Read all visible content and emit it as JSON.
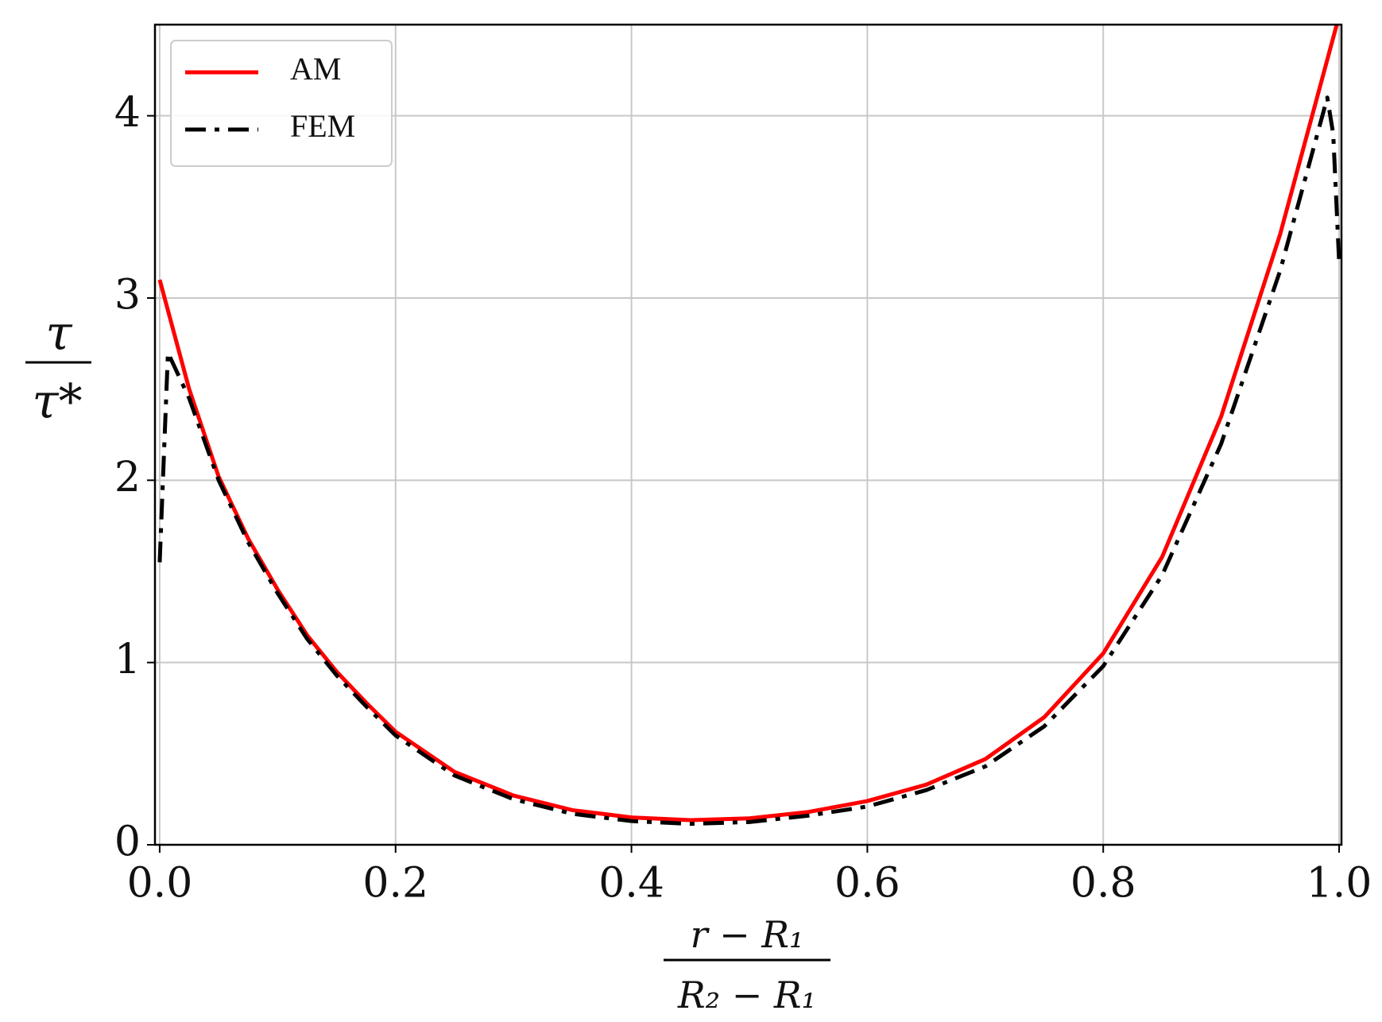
{
  "chart_data": {
    "type": "line",
    "xlabel": {
      "numerator": "r − R₁",
      "denominator": "R₂ − R₁"
    },
    "ylabel": {
      "numerator": "τ",
      "denominator": "τ*"
    },
    "xlim": [
      -0.004,
      1.002
    ],
    "ylim": [
      0,
      4.5
    ],
    "xticks": [
      {
        "value": 0,
        "label": "0.0"
      },
      0.2,
      0.4,
      0.6,
      0.8,
      {
        "value": 1,
        "label": "1.0"
      }
    ],
    "yticks": [
      0,
      1,
      2,
      3,
      4
    ],
    "grid": true,
    "legend": "upper left",
    "series": [
      {
        "name": "AM",
        "color": "#ff0000",
        "style": "solid",
        "x": [
          0,
          0.025,
          0.05,
          0.075,
          0.1,
          0.125,
          0.15,
          0.175,
          0.2,
          0.25,
          0.3,
          0.35,
          0.4,
          0.45,
          0.5,
          0.55,
          0.6,
          0.65,
          0.7,
          0.75,
          0.8,
          0.85,
          0.9,
          0.95,
          0.998
        ],
        "values": [
          3.1,
          2.5,
          2.02,
          1.68,
          1.4,
          1.15,
          0.95,
          0.78,
          0.62,
          0.4,
          0.27,
          0.19,
          0.15,
          0.135,
          0.145,
          0.18,
          0.24,
          0.33,
          0.47,
          0.7,
          1.05,
          1.58,
          2.35,
          3.35,
          4.5
        ]
      },
      {
        "name": "FEM",
        "color": "#000000",
        "style": "dashdot",
        "x": [
          0,
          0.007,
          0.025,
          0.05,
          0.075,
          0.1,
          0.125,
          0.15,
          0.175,
          0.2,
          0.25,
          0.3,
          0.35,
          0.4,
          0.45,
          0.5,
          0.55,
          0.6,
          0.65,
          0.7,
          0.75,
          0.8,
          0.85,
          0.9,
          0.95,
          0.99,
          0.995,
          1.0
        ],
        "values": [
          1.55,
          2.7,
          2.45,
          2.0,
          1.66,
          1.38,
          1.13,
          0.93,
          0.76,
          0.6,
          0.38,
          0.25,
          0.17,
          0.13,
          0.115,
          0.125,
          0.16,
          0.21,
          0.3,
          0.43,
          0.65,
          0.98,
          1.48,
          2.2,
          3.15,
          4.1,
          3.9,
          3.2
        ]
      }
    ]
  }
}
